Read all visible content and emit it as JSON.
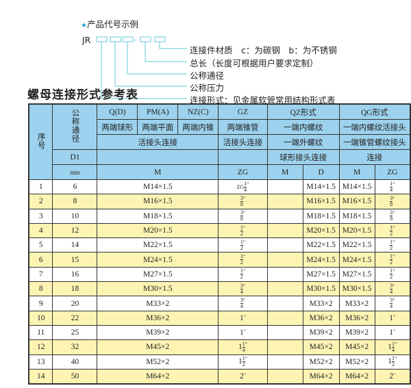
{
  "diagram": {
    "heading": "产品代号示例",
    "star_icon": "star-icon",
    "prefix": "JR",
    "dash": "-",
    "labels": [
      "连接件材质　c：为碳钢　b：为不锈钢",
      "总长（长度可根据用户要求定制）",
      "公称通径",
      "公称压力",
      "连接形式：见金属软管常用结构形式表"
    ],
    "line_color": "#7fd0e0"
  },
  "title": "螺母连接形式参考表",
  "header": {
    "seq": "序号",
    "dn": "公称通径",
    "d1": "D1",
    "mm": "mm",
    "qd": "Q(D)",
    "pm": "PM(A)",
    "nz": "NZ(C)",
    "gz": "GZ",
    "qz": "QZ形式",
    "qg": "QG形式",
    "qd2": "两端球形",
    "pm2": "两端平面",
    "nz2": "两端内锥",
    "gz2": "两端锥管",
    "qz2": "一端内螺纹",
    "qg2": "一端内螺纹活接头",
    "union": "活接头连接",
    "gz3": "活接头连接",
    "qz3": "一端外螺纹",
    "qg3": "一端锥管螺纹接头",
    "qz4": "球形接头连接",
    "qg4": "连接",
    "m": "M",
    "zg": "ZG",
    "qzm": "M",
    "qzd": "D",
    "qgm": "M",
    "qgzg": "ZG"
  },
  "colors": {
    "header_bg": "#9dd2ee",
    "alt_row_bg": "#fdf4b4"
  },
  "rows": [
    {
      "no": "1",
      "dn": "6",
      "m": "M14×1.5",
      "zg": {
        "pre": "ZG",
        "whole": "",
        "num": "1",
        "den": "4"
      },
      "qzm": "",
      "qzd": "M14×1.5",
      "qgm": "M14×1.5",
      "qgzg": {
        "whole": "",
        "num": "1",
        "den": "4"
      }
    },
    {
      "no": "2",
      "dn": "8",
      "m": "M16×1.5",
      "zg": {
        "pre": "",
        "whole": "",
        "num": "3",
        "den": "8"
      },
      "qzm": "",
      "qzd": "M16×1.5",
      "qgm": "M16×1.5",
      "qgzg": {
        "whole": "",
        "num": "3",
        "den": "8"
      }
    },
    {
      "no": "3",
      "dn": "10",
      "m": "M18×1.5",
      "zg": {
        "pre": "",
        "whole": "",
        "num": "3",
        "den": "8"
      },
      "qzm": "",
      "qzd": "M18×1.5",
      "qgm": "M18×1.5",
      "qgzg": {
        "whole": "",
        "num": "3",
        "den": "8"
      }
    },
    {
      "no": "4",
      "dn": "12",
      "m": "M20×1.5",
      "zg": {
        "pre": "",
        "whole": "",
        "num": "1",
        "den": "2"
      },
      "qzm": "",
      "qzd": "M20×1.5",
      "qgm": "M20×1.5",
      "qgzg": {
        "whole": "",
        "num": "1",
        "den": "2"
      }
    },
    {
      "no": "5",
      "dn": "14",
      "m": "M22×1.5",
      "zg": {
        "pre": "",
        "whole": "",
        "num": "1",
        "den": "2"
      },
      "qzm": "",
      "qzd": "M22×1.5",
      "qgm": "M22×1.5",
      "qgzg": {
        "whole": "",
        "num": "1",
        "den": "2"
      }
    },
    {
      "no": "6",
      "dn": "15",
      "m": "M24×1.5",
      "zg": {
        "pre": "",
        "whole": "",
        "num": "1",
        "den": "2"
      },
      "qzm": "",
      "qzd": "M24×1.5",
      "qgm": "M24×1.5",
      "qgzg": {
        "whole": "",
        "num": "1",
        "den": "2"
      }
    },
    {
      "no": "7",
      "dn": "16",
      "m": "M27×1.5",
      "zg": {
        "pre": "",
        "whole": "",
        "num": "1",
        "den": "2"
      },
      "qzm": "",
      "qzd": "M27×1.5",
      "qgm": "M27×1.5",
      "qgzg": {
        "whole": "",
        "num": "1",
        "den": "2"
      }
    },
    {
      "no": "8",
      "dn": "18",
      "m": "M30×1.5",
      "zg": {
        "pre": "",
        "whole": "",
        "num": "3",
        "den": "4"
      },
      "qzm": "",
      "qzd": "M30×1.5",
      "qgm": "M30×1.5",
      "qgzg": {
        "whole": "",
        "num": "3",
        "den": "4"
      }
    },
    {
      "no": "9",
      "dn": "20",
      "m": "M33×2",
      "zg": {
        "pre": "",
        "whole": "",
        "num": "3",
        "den": "4"
      },
      "qzm": "",
      "qzd": "M33×2",
      "qgm": "M33×2",
      "qgzg": {
        "whole": "",
        "num": "3",
        "den": "4"
      }
    },
    {
      "no": "10",
      "dn": "22",
      "m": "M36×2",
      "zg": {
        "pre": "",
        "whole": "1",
        "num": "",
        "den": ""
      },
      "qzm": "",
      "qzd": "M36×2",
      "qgm": "M36×2",
      "qgzg": {
        "whole": "1",
        "num": "",
        "den": ""
      }
    },
    {
      "no": "11",
      "dn": "25",
      "m": "M39×2",
      "zg": {
        "pre": "",
        "whole": "1",
        "num": "",
        "den": ""
      },
      "qzm": "",
      "qzd": "M39×2",
      "qgm": "M39×2",
      "qgzg": {
        "whole": "1",
        "num": "",
        "den": ""
      }
    },
    {
      "no": "12",
      "dn": "32",
      "m": "M45×2",
      "zg": {
        "pre": "",
        "whole": "1",
        "num": "1",
        "den": "4"
      },
      "qzm": "",
      "qzd": "M45×2",
      "qgm": "M45×2",
      "qgzg": {
        "whole": "1",
        "num": "1",
        "den": "4"
      }
    },
    {
      "no": "13",
      "dn": "40",
      "m": "M52×2",
      "zg": {
        "pre": "",
        "whole": "1",
        "num": "1",
        "den": "2"
      },
      "qzm": "",
      "qzd": "M52×2",
      "qgm": "M52×2",
      "qgzg": {
        "whole": "1",
        "num": "1",
        "den": "2"
      }
    },
    {
      "no": "14",
      "dn": "50",
      "m": "M64×2",
      "zg": {
        "pre": "",
        "whole": "2",
        "num": "",
        "den": ""
      },
      "qzm": "",
      "qzd": "M64×2",
      "qgm": "M64×2",
      "qgzg": {
        "whole": "2",
        "num": "",
        "den": ""
      }
    }
  ]
}
